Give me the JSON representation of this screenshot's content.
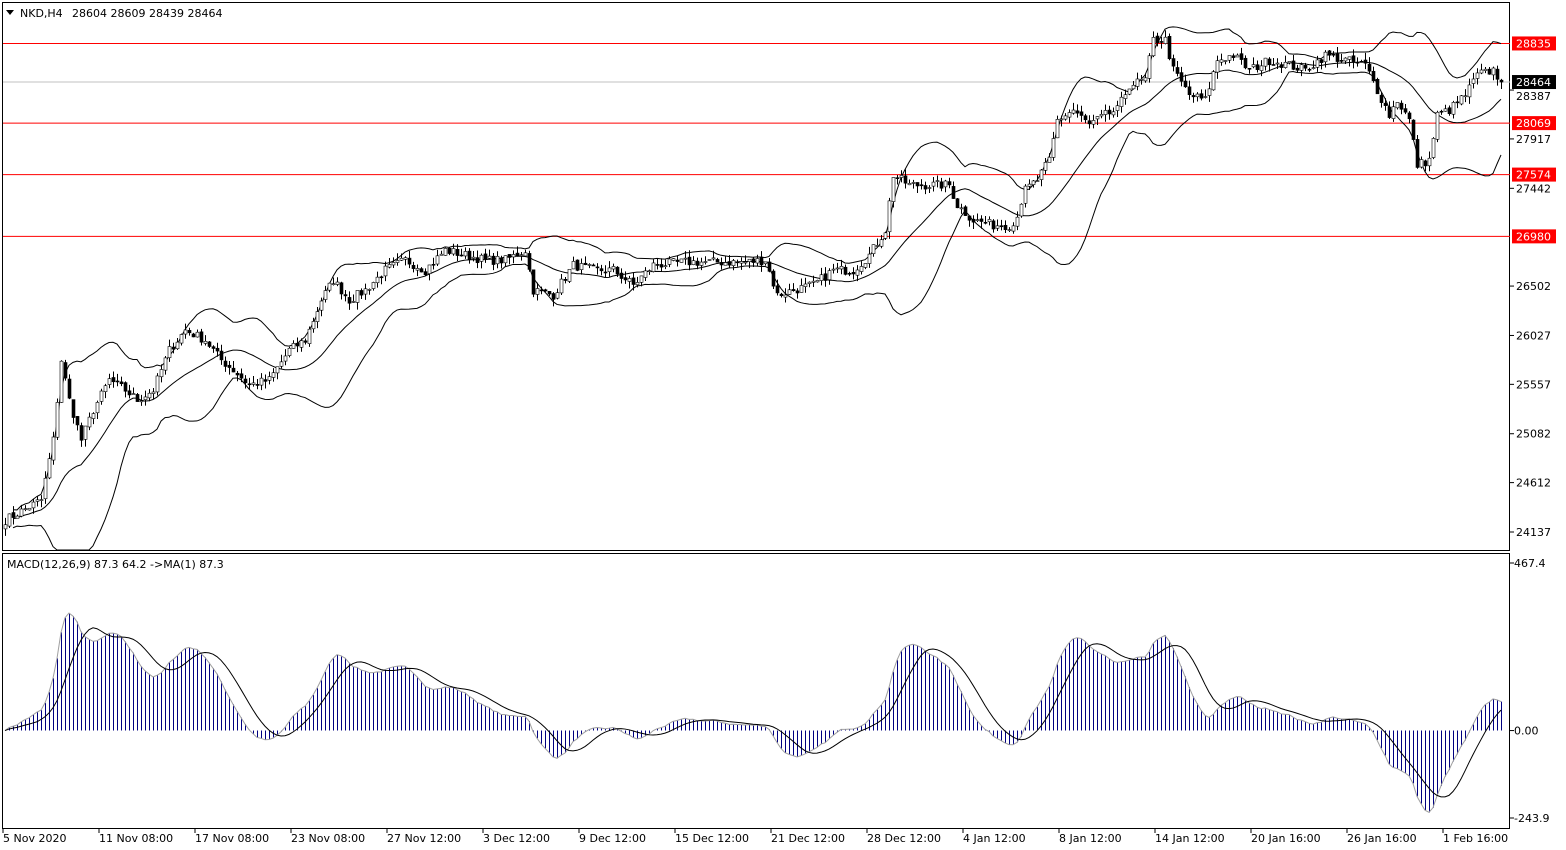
{
  "header": {
    "symbol": "NKD,H4",
    "ohlc": "28604 28609 28439 28464",
    "menu_icon": "triangle-down-icon"
  },
  "macd_header": {
    "label": "MACD(12,26,9) 87.3 64.2  ->MA(1) 87.3"
  },
  "colors": {
    "background": "#ffffff",
    "level_line": "#ff0000",
    "current_price_line": "#c0c0c0",
    "current_price_box": "#000000",
    "histogram": "#000080",
    "macd_line": "#a0a0a0",
    "signal_line": "#000000"
  },
  "chart_data": [
    {
      "type": "candlestick",
      "title": "NKD,H4",
      "timeframe": "H4",
      "indicators": [
        "Bollinger Bands"
      ],
      "ylim": [
        23964,
        29224
      ],
      "y_ticks": [
        28387,
        27917,
        27442,
        26502,
        26027,
        25557,
        25082,
        24612,
        24137
      ],
      "x_ticks": [
        "5 Nov 2020",
        "11 Nov 08:00",
        "17 Nov 08:00",
        "23 Nov 08:00",
        "27 Nov 12:00",
        "3 Dec 12:00",
        "9 Dec 12:00",
        "15 Dec 12:00",
        "21 Dec 12:00",
        "28 Dec 12:00",
        "4 Jan 12:00",
        "8 Jan 12:00",
        "14 Jan 12:00",
        "20 Jan 16:00",
        "26 Jan 16:00",
        "1 Feb 16:00"
      ],
      "levels": [
        28835,
        28069,
        27574,
        26980
      ],
      "current_price": 28464,
      "approx_close_path": [
        [
          0,
          24252
        ],
        [
          9,
          24445
        ],
        [
          12,
          25022
        ],
        [
          14,
          25791
        ],
        [
          16,
          25406
        ],
        [
          19,
          25022
        ],
        [
          22,
          25310
        ],
        [
          26,
          25599
        ],
        [
          30,
          25502
        ],
        [
          33,
          25406
        ],
        [
          37,
          25502
        ],
        [
          41,
          25887
        ],
        [
          45,
          26079
        ],
        [
          50,
          25983
        ],
        [
          54,
          25791
        ],
        [
          57,
          25695
        ],
        [
          61,
          25551
        ],
        [
          66,
          25599
        ],
        [
          71,
          25887
        ],
        [
          75,
          25983
        ],
        [
          79,
          26368
        ],
        [
          82,
          26560
        ],
        [
          86,
          26368
        ],
        [
          90,
          26464
        ],
        [
          95,
          26656
        ],
        [
          100,
          26752
        ],
        [
          105,
          26656
        ],
        [
          110,
          26848
        ],
        [
          115,
          26800
        ],
        [
          120,
          26752
        ],
        [
          125,
          26752
        ],
        [
          130,
          26848
        ],
        [
          132,
          26464
        ],
        [
          137,
          26416
        ],
        [
          142,
          26704
        ],
        [
          147,
          26656
        ],
        [
          152,
          26656
        ],
        [
          157,
          26512
        ],
        [
          162,
          26704
        ],
        [
          170,
          26733
        ],
        [
          175,
          26733
        ],
        [
          180,
          26733
        ],
        [
          185,
          26733
        ],
        [
          190,
          26752
        ],
        [
          193,
          26416
        ],
        [
          197,
          26464
        ],
        [
          202,
          26512
        ],
        [
          207,
          26656
        ],
        [
          212,
          26656
        ],
        [
          216,
          26800
        ],
        [
          220,
          27041
        ],
        [
          222,
          27570
        ],
        [
          226,
          27474
        ],
        [
          231,
          27474
        ],
        [
          236,
          27474
        ],
        [
          238,
          27281
        ],
        [
          242,
          27137
        ],
        [
          247,
          27089
        ],
        [
          252,
          27089
        ],
        [
          255,
          27425
        ],
        [
          258,
          27522
        ],
        [
          261,
          27714
        ],
        [
          263,
          28099
        ],
        [
          267,
          28195
        ],
        [
          271,
          28050
        ],
        [
          275,
          28147
        ],
        [
          278,
          28195
        ],
        [
          281,
          28435
        ],
        [
          285,
          28483
        ],
        [
          287,
          28868
        ],
        [
          290,
          28868
        ],
        [
          292,
          28579
        ],
        [
          296,
          28339
        ],
        [
          300,
          28291
        ],
        [
          303,
          28675
        ],
        [
          307,
          28723
        ],
        [
          311,
          28579
        ],
        [
          316,
          28675
        ],
        [
          321,
          28627
        ],
        [
          325,
          28579
        ],
        [
          330,
          28723
        ],
        [
          335,
          28675
        ],
        [
          340,
          28627
        ],
        [
          343,
          28387
        ],
        [
          346,
          28147
        ],
        [
          348,
          28291
        ],
        [
          351,
          28099
        ],
        [
          353,
          27666
        ],
        [
          356,
          27714
        ],
        [
          358,
          28147
        ],
        [
          361,
          28195
        ],
        [
          365,
          28339
        ],
        [
          368,
          28531
        ],
        [
          372,
          28579
        ],
        [
          374,
          28464
        ]
      ]
    },
    {
      "type": "bar+line",
      "title": "MACD(12,26,9)",
      "values_shown": {
        "macd": 87.3,
        "signal": 64.2,
        "ma": 87.3
      },
      "ylim": [
        -243.9,
        467.4
      ],
      "y_ticks": [
        467.4,
        0.0,
        -243.9
      ]
    }
  ]
}
